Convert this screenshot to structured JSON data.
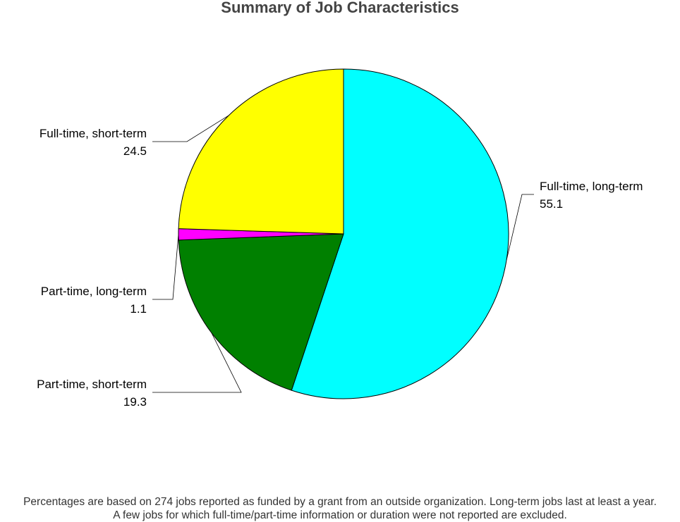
{
  "chart_data": {
    "type": "pie",
    "title": "Summary of Job Characteristics",
    "slices": [
      {
        "label": "Full-time, long-term",
        "value": 55.1,
        "value_label": "55.1",
        "color": "#00FFFF"
      },
      {
        "label": "Part-time, short-term",
        "value": 19.3,
        "value_label": "19.3",
        "color": "#008000"
      },
      {
        "label": "Part-time, long-term",
        "value": 1.1,
        "value_label": "1.1",
        "color": "#FF00FF"
      },
      {
        "label": "Full-time, short-term",
        "value": 24.5,
        "value_label": "24.5",
        "color": "#FFFF00"
      }
    ],
    "start": "12 o'clock",
    "direction": "clockwise"
  },
  "footnote": {
    "line1": "Percentages are based on 274 jobs reported as funded by a grant from an outside organization. Long-term jobs last at least a year.",
    "line2": "A few jobs for which full-time/part-time information or duration were not reported are excluded."
  }
}
